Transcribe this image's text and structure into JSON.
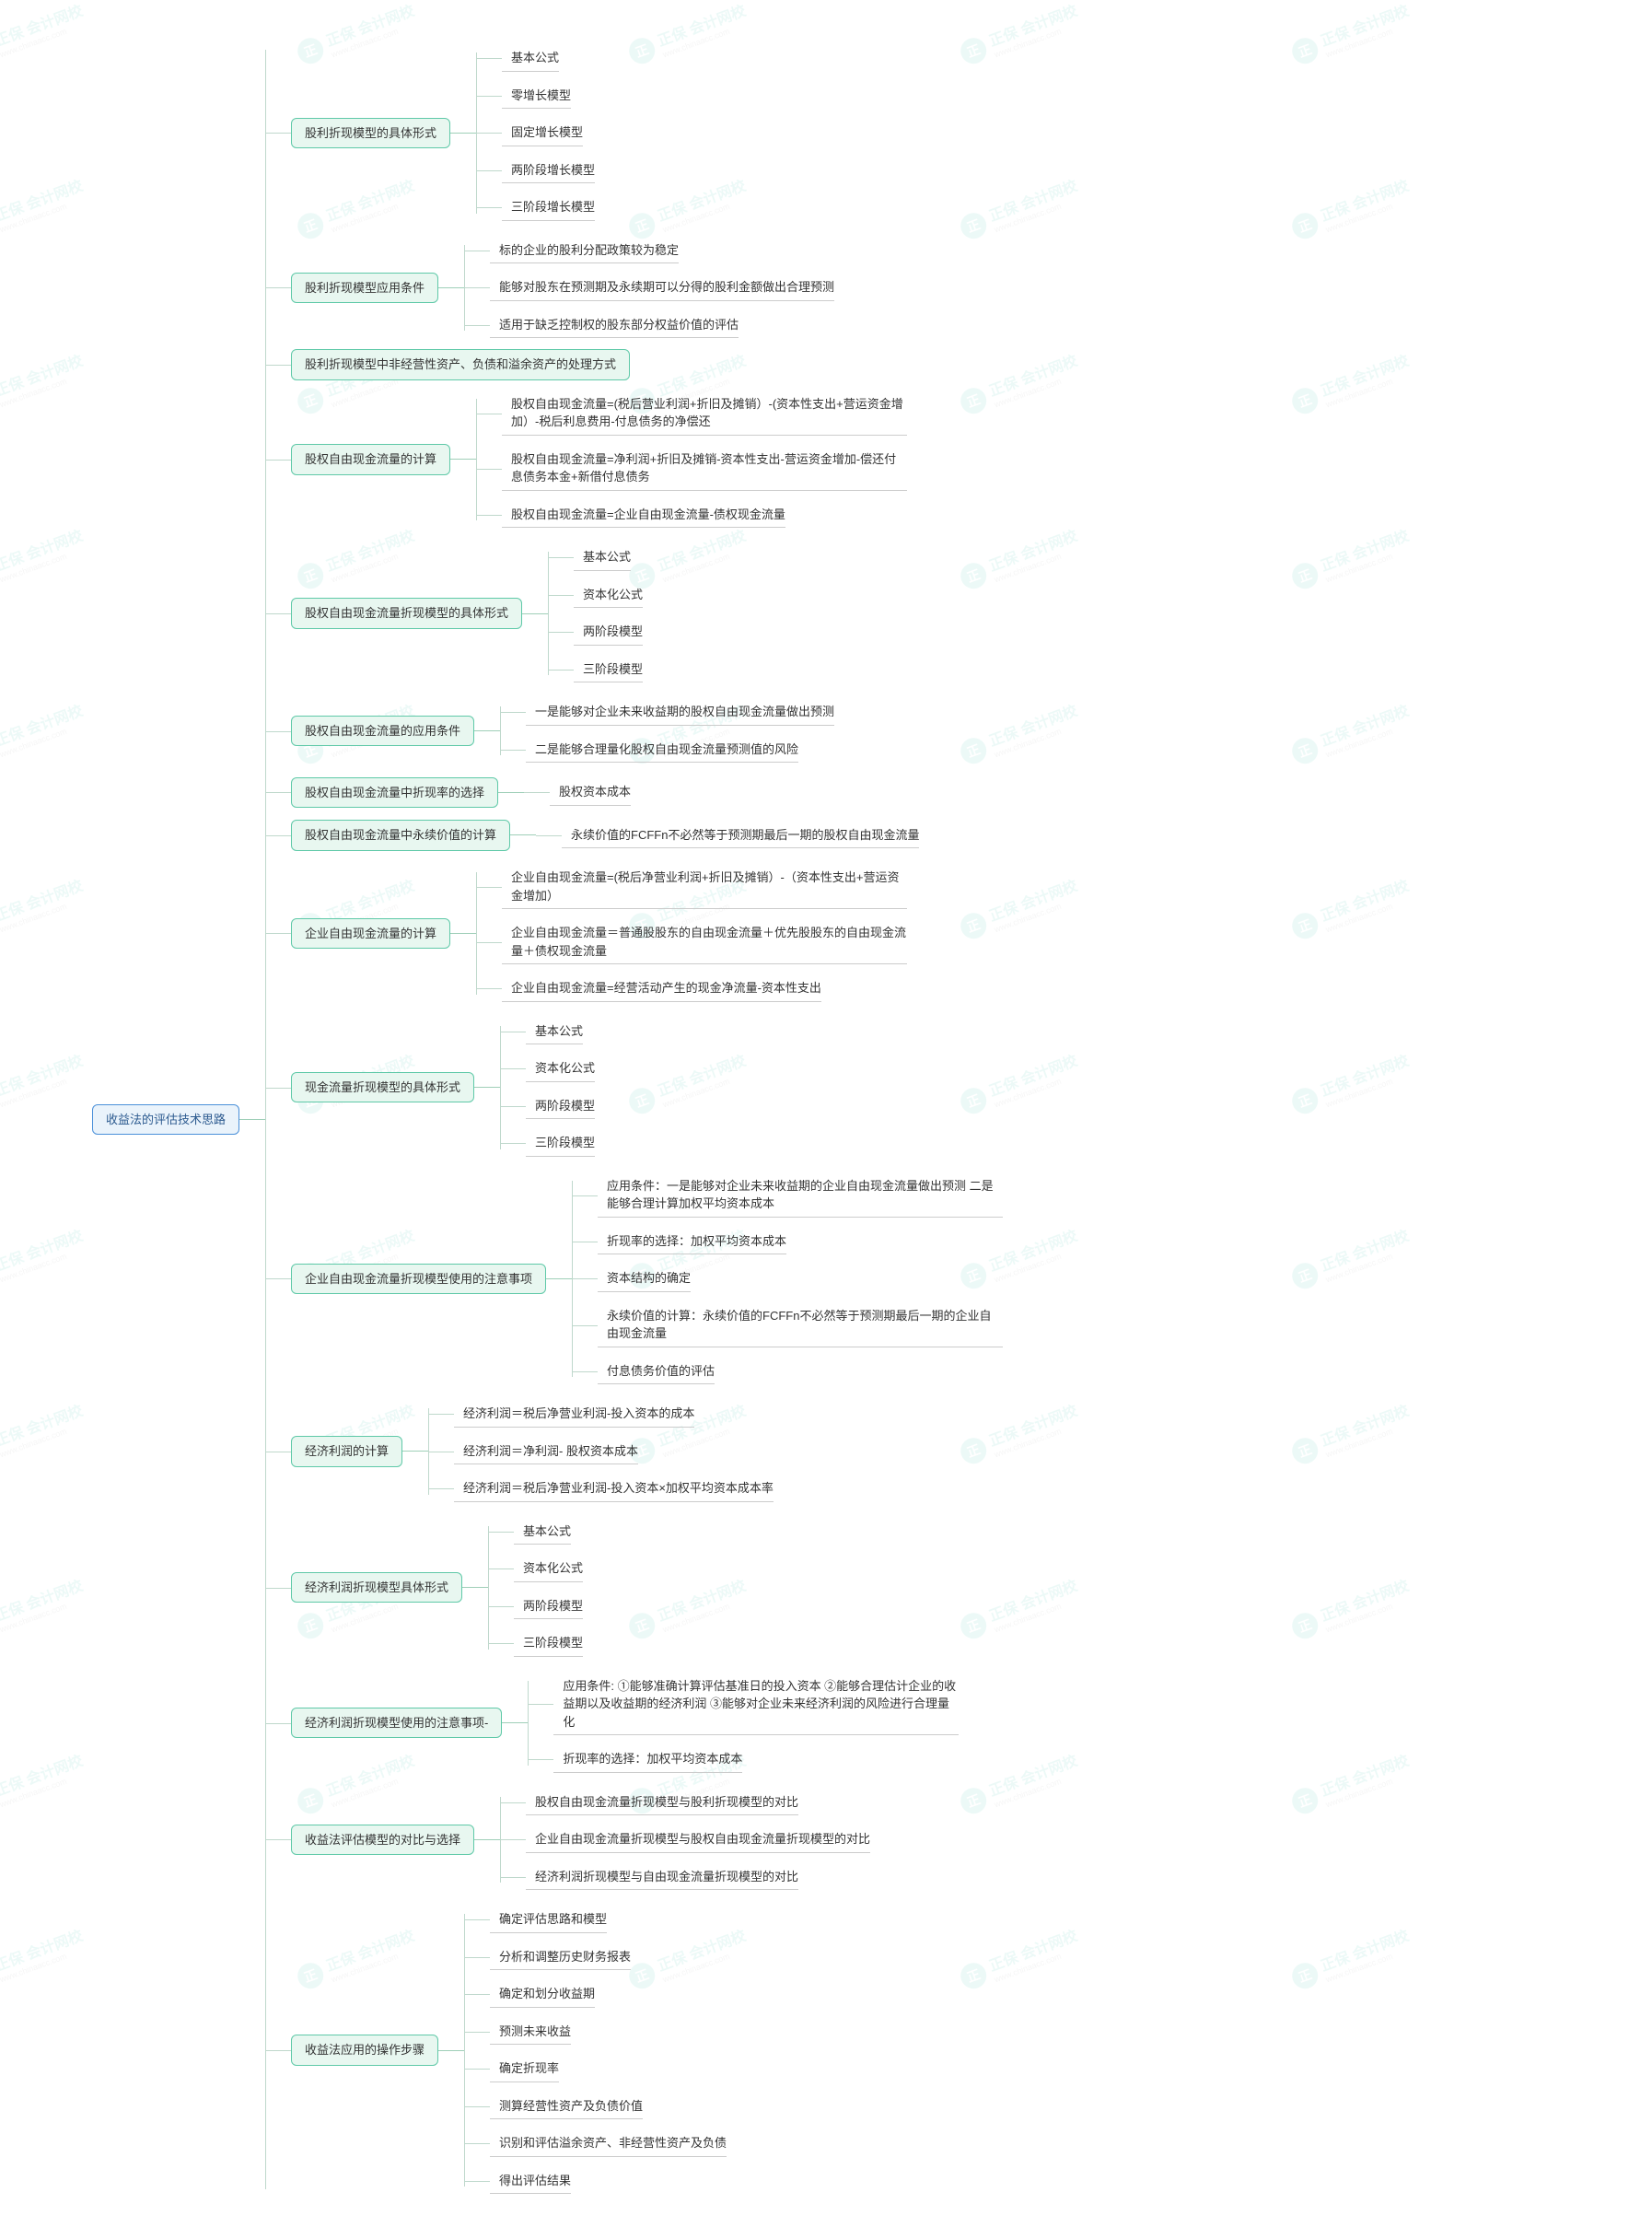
{
  "watermark": {
    "badge": "正",
    "text1": "正保",
    "text2": "会计网校"
  },
  "colors": {
    "root_border": "#4a90d9",
    "root_bg": "#eaf3fb",
    "topic_border": "#5fc9a8",
    "topic_bg": "#e8f7f0",
    "line": "#bfd8cc",
    "leaf_underline": "#cccccc",
    "text": "#333333",
    "bg": "#ffffff"
  },
  "root": "收益法的评估技术思路",
  "level1_topic": "企业自由",
  "map": [
    {
      "label": "股利折现模型的具体形式",
      "children": [
        {
          "leaf": "基本公式"
        },
        {
          "leaf": "零增长模型"
        },
        {
          "leaf": "固定增长模型"
        },
        {
          "leaf": "两阶段增长模型"
        },
        {
          "leaf": "三阶段增长模型"
        }
      ]
    },
    {
      "label": "股利折现模型应用条件",
      "children": [
        {
          "leaf": "标的企业的股利分配政策较为稳定"
        },
        {
          "leaf": "能够对股东在预测期及永续期可以分得的股利金额做出合理预测"
        },
        {
          "leaf": "适用于缺乏控制权的股东部分权益价值的评估"
        }
      ]
    },
    {
      "label": "股利折现模型中非经营性资产、负债和溢余资产的处理方式",
      "children": []
    },
    {
      "label": "股权自由现金流量的计算",
      "children": [
        {
          "leaf": "股权自由现金流量=(税后营业利润+折旧及摊销）-(资本性支出+营运资金增加）-税后利息费用-付息债务的净偿还"
        },
        {
          "leaf": "股权自由现金流量=净利润+折旧及摊销-资本性支出-营运资金增加-偿还付息债务本金+新借付息债务"
        },
        {
          "leaf": "股权自由现金流量=企业自由现金流量-债权现金流量"
        }
      ]
    },
    {
      "label": "股权自由现金流量折现模型的具体形式",
      "children": [
        {
          "leaf": "基本公式"
        },
        {
          "leaf": "资本化公式"
        },
        {
          "leaf": "两阶段模型"
        },
        {
          "leaf": "三阶段模型"
        }
      ]
    },
    {
      "label": "股权自由现金流量的应用条件",
      "children": [
        {
          "leaf": "一是能够对企业未来收益期的股权自由现金流量做出预测"
        },
        {
          "leaf": "二是能够合理量化股权自由现金流量预测值的风险"
        }
      ]
    },
    {
      "label": "股权自由现金流量中折现率的选择",
      "children": [
        {
          "leaf": "股权资本成本"
        }
      ]
    },
    {
      "label": "股权自由现金流量中永续价值的计算",
      "children": [
        {
          "leaf": "永续价值的FCFFn不必然等于预测期最后一期的股权自由现金流量"
        }
      ]
    },
    {
      "label": "企业自由现金流量的计算",
      "children": [
        {
          "leaf": "企业自由现金流量=(税后净营业利润+折旧及摊销）-（资本性支出+营运资金增加）"
        },
        {
          "leaf": "企业自由现金流量＝普通股股东的自由现金流量＋优先股股东的自由现金流量＋债权现金流量"
        },
        {
          "leaf": "企业自由现金流量=经营活动产生的现金净流量-资本性支出"
        }
      ]
    },
    {
      "label": "现金流量折现模型的具体形式",
      "children": [
        {
          "leaf": "基本公式"
        },
        {
          "leaf": "资本化公式"
        },
        {
          "leaf": "两阶段模型"
        },
        {
          "leaf": "三阶段模型"
        }
      ]
    },
    {
      "label": "企业自由现金流量折现模型使用的注意事项",
      "children": [
        {
          "leaf": "应用条件：一是能够对企业未来收益期的企业自由现金流量做出预测  二是能够合理计算加权平均资本成本"
        },
        {
          "leaf": "折现率的选择：加权平均资本成本"
        },
        {
          "leaf": "资本结构的确定"
        },
        {
          "leaf": "永续价值的计算：永续价值的FCFFn不必然等于预测期最后一期的企业自由现金流量"
        },
        {
          "leaf": "付息债务价值的评估"
        }
      ]
    },
    {
      "label": "经济利润的计算",
      "children": [
        {
          "leaf": "经济利润＝税后净营业利润-投入资本的成本"
        },
        {
          "leaf": "经济利润＝净利润- 股权资本成本"
        },
        {
          "leaf": "经济利润＝税后净营业利润-投入资本×加权平均资本成本率"
        }
      ]
    },
    {
      "label": "经济利润折现模型具体形式",
      "children": [
        {
          "leaf": "基本公式"
        },
        {
          "leaf": "资本化公式"
        },
        {
          "leaf": "两阶段模型"
        },
        {
          "leaf": "三阶段模型"
        }
      ]
    },
    {
      "label": "经济利润折现模型使用的注意事项-",
      "children": [
        {
          "leaf": "应用条件: ①能够准确计算评估基准日的投入资本 ②能够合理估计企业的收益期以及收益期的经济利润 ③能够对企业未来经济利润的风险进行合理量化"
        },
        {
          "leaf": "折现率的选择：加权平均资本成本"
        }
      ]
    },
    {
      "label": "收益法评估模型的对比与选择",
      "children": [
        {
          "leaf": "股权自由现金流量折现模型与股利折现模型的对比"
        },
        {
          "leaf": "企业自由现金流量折现模型与股权自由现金流量折现模型的对比"
        },
        {
          "leaf": "经济利润折现模型与自由现金流量折现模型的对比"
        }
      ]
    },
    {
      "label": "收益法应用的操作步骤",
      "children": [
        {
          "leaf": "确定评估思路和模型"
        },
        {
          "leaf": "分析和调整历史财务报表"
        },
        {
          "leaf": "确定和划分收益期"
        },
        {
          "leaf": "预测未来收益"
        },
        {
          "leaf": "确定折现率"
        },
        {
          "leaf": "测算经营性资产及负债价值"
        },
        {
          "leaf": "识别和评估溢余资产、非经营性资产及负债"
        },
        {
          "leaf": "得出评估结果"
        }
      ]
    }
  ]
}
